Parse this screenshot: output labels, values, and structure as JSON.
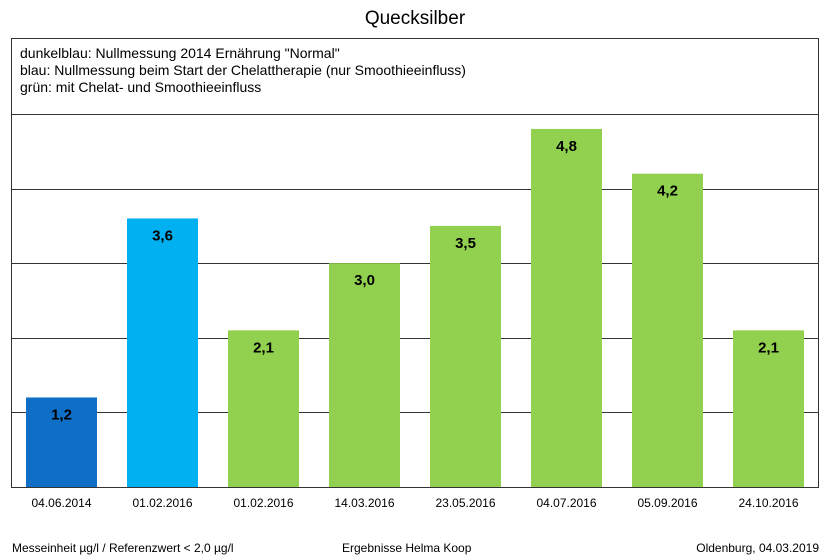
{
  "title": "Quecksilber",
  "legend_lines": [
    "dunkelblau: Nullmessung 2014 Ernährung \"Normal\"",
    "blau: Nullmessung beim Start der Chelattherapie (nur Smoothieeinfluss)",
    "grün: mit Chelat- und Smoothieeinfluss"
  ],
  "footer": {
    "left": "Messeinheit µg/l / Referenzwert < 2,0 µg/l",
    "center": "Ergebnisse Helma Koop",
    "right": "Oldenburg, 04.03.2019"
  },
  "colors": {
    "dunkelblau": "#0f6fc6",
    "blau": "#00b0f0",
    "gruen": "#92d050",
    "grid": "#333333"
  },
  "chart_data": {
    "type": "bar",
    "title": "Quecksilber",
    "categories": [
      "04.06.2014",
      "01.02.2016",
      "01.02.2016",
      "14.03.2016",
      "23.05.2016",
      "04.07.2016",
      "05.09.2016",
      "24.10.2016"
    ],
    "values": [
      1.2,
      3.6,
      2.1,
      3.0,
      3.5,
      4.8,
      4.2,
      2.1
    ],
    "value_labels": [
      "1,2",
      "3,6",
      "2,1",
      "3,0",
      "3,5",
      "4,8",
      "4,2",
      "2,1"
    ],
    "bar_colors": [
      "dunkelblau",
      "blau",
      "gruen",
      "gruen",
      "gruen",
      "gruen",
      "gruen",
      "gruen"
    ],
    "ylim": [
      0,
      5
    ],
    "y_gridlines": [
      1,
      2,
      3,
      4,
      5
    ],
    "xlabel": "",
    "ylabel": "",
    "grid": true
  }
}
